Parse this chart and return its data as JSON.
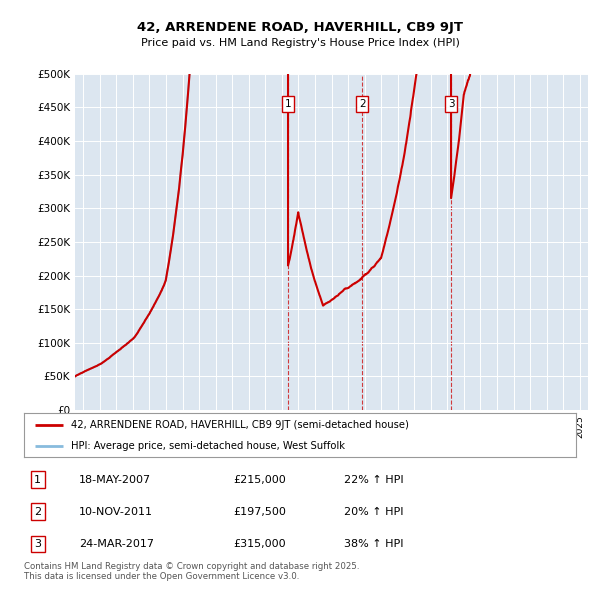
{
  "title1": "42, ARRENDENE ROAD, HAVERHILL, CB9 9JT",
  "title2": "Price paid vs. HM Land Registry's House Price Index (HPI)",
  "legend_line1": "42, ARRENDENE ROAD, HAVERHILL, CB9 9JT (semi-detached house)",
  "legend_line2": "HPI: Average price, semi-detached house, West Suffolk",
  "copyright": "Contains HM Land Registry data © Crown copyright and database right 2025.\nThis data is licensed under the Open Government Licence v3.0.",
  "transactions": [
    {
      "num": 1,
      "date": "18-MAY-2007",
      "price": "£215,000",
      "hpi": "22% ↑ HPI",
      "year": 2007.38
    },
    {
      "num": 2,
      "date": "10-NOV-2011",
      "price": "£197,500",
      "hpi": "20% ↑ HPI",
      "year": 2011.86
    },
    {
      "num": 3,
      "date": "24-MAR-2017",
      "price": "£315,000",
      "hpi": "38% ↑ HPI",
      "year": 2017.23
    }
  ],
  "price_color": "#cc0000",
  "hpi_color": "#88bbdd",
  "background_color": "#dce6f0",
  "plot_bg": "#dce6f0",
  "ylim": [
    0,
    500000
  ],
  "yticks": [
    0,
    50000,
    100000,
    150000,
    200000,
    250000,
    300000,
    350000,
    400000,
    450000,
    500000
  ],
  "xlim_start": 1994.5,
  "xlim_end": 2025.5
}
